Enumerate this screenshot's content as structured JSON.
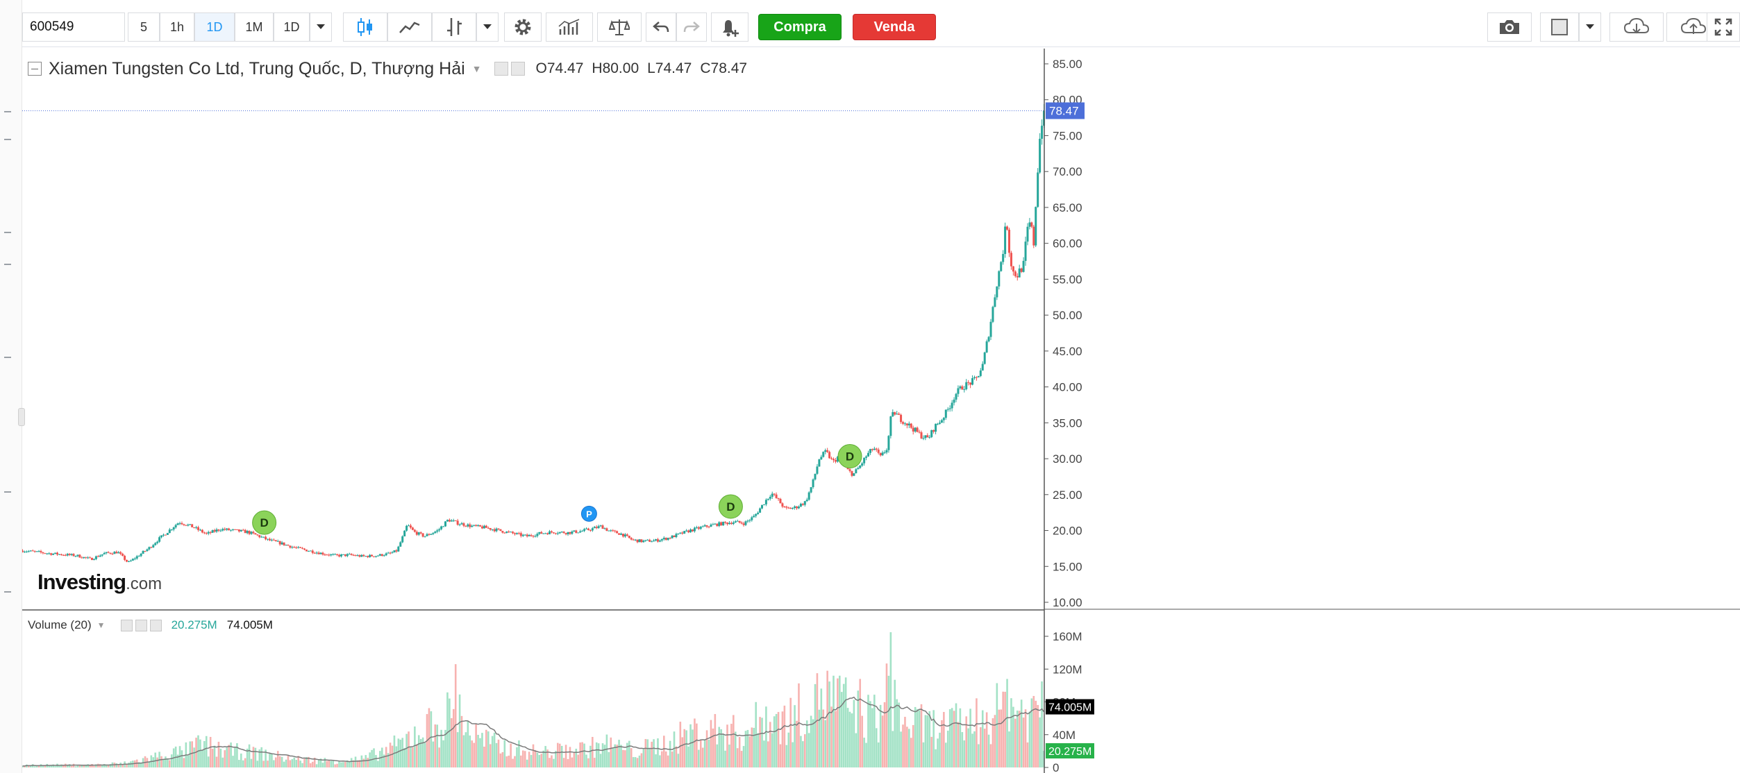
{
  "toolbar": {
    "symbol": "600549",
    "intervals": [
      "5",
      "1h",
      "1D",
      "1M",
      "1D"
    ],
    "active_interval": "1D",
    "buy_label": "Compra",
    "sell_label": "Venda"
  },
  "legend": {
    "title": "Xiamen Tungsten Co Ltd, Trung Quốc, D, Thượng Hải",
    "open": "O74.47",
    "high": "H80.00",
    "low": "L74.47",
    "close": "C78.47"
  },
  "volume_legend": {
    "title": "Volume (20)",
    "value1": "20.275M",
    "value2": "74.005M"
  },
  "logo": {
    "main": "Investing",
    "suffix": ".com"
  },
  "colors": {
    "up": "#26a69a",
    "down": "#ef5350",
    "vol_up": "#a3e2c6",
    "vol_down": "#f7b2b0",
    "price_tag": "#4d6fd9",
    "ma_line": "#7a7a7a",
    "buy": "#18a418",
    "sell": "#e53935"
  },
  "chart_data": [
    {
      "type": "candlestick",
      "title": "Xiamen Tungsten Co Ltd, Trung Quốc, D, Thượng Hải",
      "y_axis": {
        "min": 10,
        "max": 85,
        "ticks": [
          "85.00",
          "80.00",
          "75.00",
          "70.00",
          "65.00",
          "60.00",
          "55.00",
          "50.00",
          "45.00",
          "40.00",
          "35.00",
          "30.00",
          "25.00",
          "20.00",
          "15.00",
          "10.00"
        ],
        "position": "right"
      },
      "last_price": "78.47",
      "close_path": [
        [
          0,
          17.2
        ],
        [
          40,
          16.8
        ],
        [
          80,
          16.5
        ],
        [
          100,
          16.0
        ],
        [
          120,
          16.8
        ],
        [
          140,
          17.0
        ],
        [
          155,
          15.5
        ],
        [
          170,
          16.5
        ],
        [
          185,
          17.5
        ],
        [
          200,
          18.8
        ],
        [
          215,
          20.0
        ],
        [
          230,
          21.2
        ],
        [
          250,
          20.5
        ],
        [
          270,
          19.5
        ],
        [
          290,
          20.2
        ],
        [
          310,
          20.0
        ],
        [
          330,
          19.8
        ],
        [
          345,
          19.3
        ],
        [
          360,
          18.7
        ],
        [
          380,
          18.2
        ],
        [
          400,
          17.6
        ],
        [
          420,
          17.2
        ],
        [
          440,
          16.8
        ],
        [
          460,
          16.5
        ],
        [
          480,
          16.6
        ],
        [
          500,
          16.4
        ],
        [
          520,
          16.5
        ],
        [
          540,
          16.8
        ],
        [
          550,
          17.2
        ],
        [
          560,
          19.5
        ],
        [
          565,
          20.8
        ],
        [
          575,
          19.8
        ],
        [
          590,
          19.2
        ],
        [
          610,
          20.0
        ],
        [
          625,
          21.5
        ],
        [
          640,
          21.0
        ],
        [
          660,
          20.6
        ],
        [
          680,
          20.4
        ],
        [
          700,
          20.0
        ],
        [
          720,
          19.6
        ],
        [
          740,
          19.2
        ],
        [
          760,
          19.6
        ],
        [
          780,
          19.8
        ],
        [
          800,
          19.7
        ],
        [
          820,
          19.9
        ],
        [
          835,
          20.2
        ],
        [
          850,
          20.6
        ],
        [
          860,
          20.0
        ],
        [
          880,
          19.5
        ],
        [
          895,
          18.7
        ],
        [
          910,
          18.5
        ],
        [
          930,
          18.6
        ],
        [
          950,
          19.0
        ],
        [
          965,
          19.5
        ],
        [
          980,
          20.0
        ],
        [
          1000,
          20.5
        ],
        [
          1015,
          20.8
        ],
        [
          1030,
          21.0
        ],
        [
          1045,
          21.2
        ],
        [
          1060,
          21.0
        ],
        [
          1075,
          22.0
        ],
        [
          1090,
          24.0
        ],
        [
          1100,
          25.2
        ],
        [
          1110,
          24.2
        ],
        [
          1120,
          23.0
        ],
        [
          1135,
          23.2
        ],
        [
          1150,
          24.0
        ],
        [
          1160,
          26.5
        ],
        [
          1170,
          30.0
        ],
        [
          1180,
          31.0
        ],
        [
          1190,
          29.5
        ],
        [
          1200,
          30.5
        ],
        [
          1210,
          28.5
        ],
        [
          1220,
          27.8
        ],
        [
          1230,
          29.0
        ],
        [
          1240,
          30.5
        ],
        [
          1250,
          31.5
        ],
        [
          1260,
          30.2
        ],
        [
          1270,
          31.5
        ],
        [
          1275,
          35.5
        ],
        [
          1280,
          36.5
        ],
        [
          1290,
          35.5
        ],
        [
          1300,
          34.8
        ],
        [
          1310,
          34.0
        ],
        [
          1320,
          33.2
        ],
        [
          1330,
          32.8
        ],
        [
          1340,
          34.5
        ],
        [
          1350,
          35.5
        ],
        [
          1360,
          37.0
        ],
        [
          1370,
          39.0
        ],
        [
          1380,
          40.0
        ],
        [
          1390,
          40.5
        ],
        [
          1400,
          41.0
        ],
        [
          1410,
          43.0
        ],
        [
          1420,
          48.0
        ],
        [
          1430,
          54.0
        ],
        [
          1440,
          59.0
        ],
        [
          1445,
          63.5
        ],
        [
          1450,
          58.0
        ],
        [
          1455,
          56.0
        ],
        [
          1460,
          55.5
        ],
        [
          1470,
          57.0
        ],
        [
          1475,
          61.5
        ],
        [
          1480,
          63.0
        ],
        [
          1485,
          60.0
        ],
        [
          1490,
          69.0
        ],
        [
          1495,
          76.0
        ],
        [
          1500,
          78.47
        ]
      ]
    },
    {
      "type": "bar",
      "title": "Volume (20)",
      "y_axis": {
        "min": 0,
        "max": 170,
        "unit": "M",
        "ticks": [
          "160M",
          "120M",
          "80M",
          "40M",
          "0"
        ],
        "position": "right"
      },
      "ma_period": 20,
      "last_volume": "20.275M",
      "last_ma": "74.005M",
      "volume_profile": [
        [
          0,
          3
        ],
        [
          100,
          3
        ],
        [
          150,
          5
        ],
        [
          200,
          14
        ],
        [
          240,
          20
        ],
        [
          260,
          28
        ],
        [
          300,
          20
        ],
        [
          340,
          18
        ],
        [
          400,
          10
        ],
        [
          450,
          8
        ],
        [
          500,
          10
        ],
        [
          560,
          30
        ],
        [
          580,
          45
        ],
        [
          620,
          55
        ],
        [
          635,
          80
        ],
        [
          660,
          40
        ],
        [
          700,
          25
        ],
        [
          760,
          18
        ],
        [
          820,
          22
        ],
        [
          860,
          28
        ],
        [
          900,
          20
        ],
        [
          950,
          30
        ],
        [
          980,
          42
        ],
        [
          1020,
          45
        ],
        [
          1060,
          40
        ],
        [
          1090,
          62
        ],
        [
          1120,
          55
        ],
        [
          1150,
          72
        ],
        [
          1170,
          95
        ],
        [
          1200,
          80
        ],
        [
          1230,
          62
        ],
        [
          1260,
          60
        ],
        [
          1275,
          100
        ],
        [
          1290,
          55
        ],
        [
          1320,
          50
        ],
        [
          1350,
          48
        ],
        [
          1380,
          52
        ],
        [
          1420,
          62
        ],
        [
          1450,
          75
        ],
        [
          1480,
          65
        ],
        [
          1500,
          75
        ]
      ],
      "spikes": [
        [
          635,
          126
        ],
        [
          1168,
          115
        ],
        [
          1183,
          118
        ],
        [
          1230,
          108
        ],
        [
          1276,
          165
        ],
        [
          1447,
          108
        ],
        [
          1497,
          105
        ]
      ]
    }
  ],
  "markers": [
    {
      "label": "D",
      "kind": "dividend",
      "x_index": 355
    },
    {
      "label": "P",
      "kind": "split",
      "x_index": 832
    },
    {
      "label": "D",
      "kind": "dividend",
      "x_index": 1040
    },
    {
      "label": "D",
      "kind": "dividend",
      "x_index": 1215
    }
  ]
}
